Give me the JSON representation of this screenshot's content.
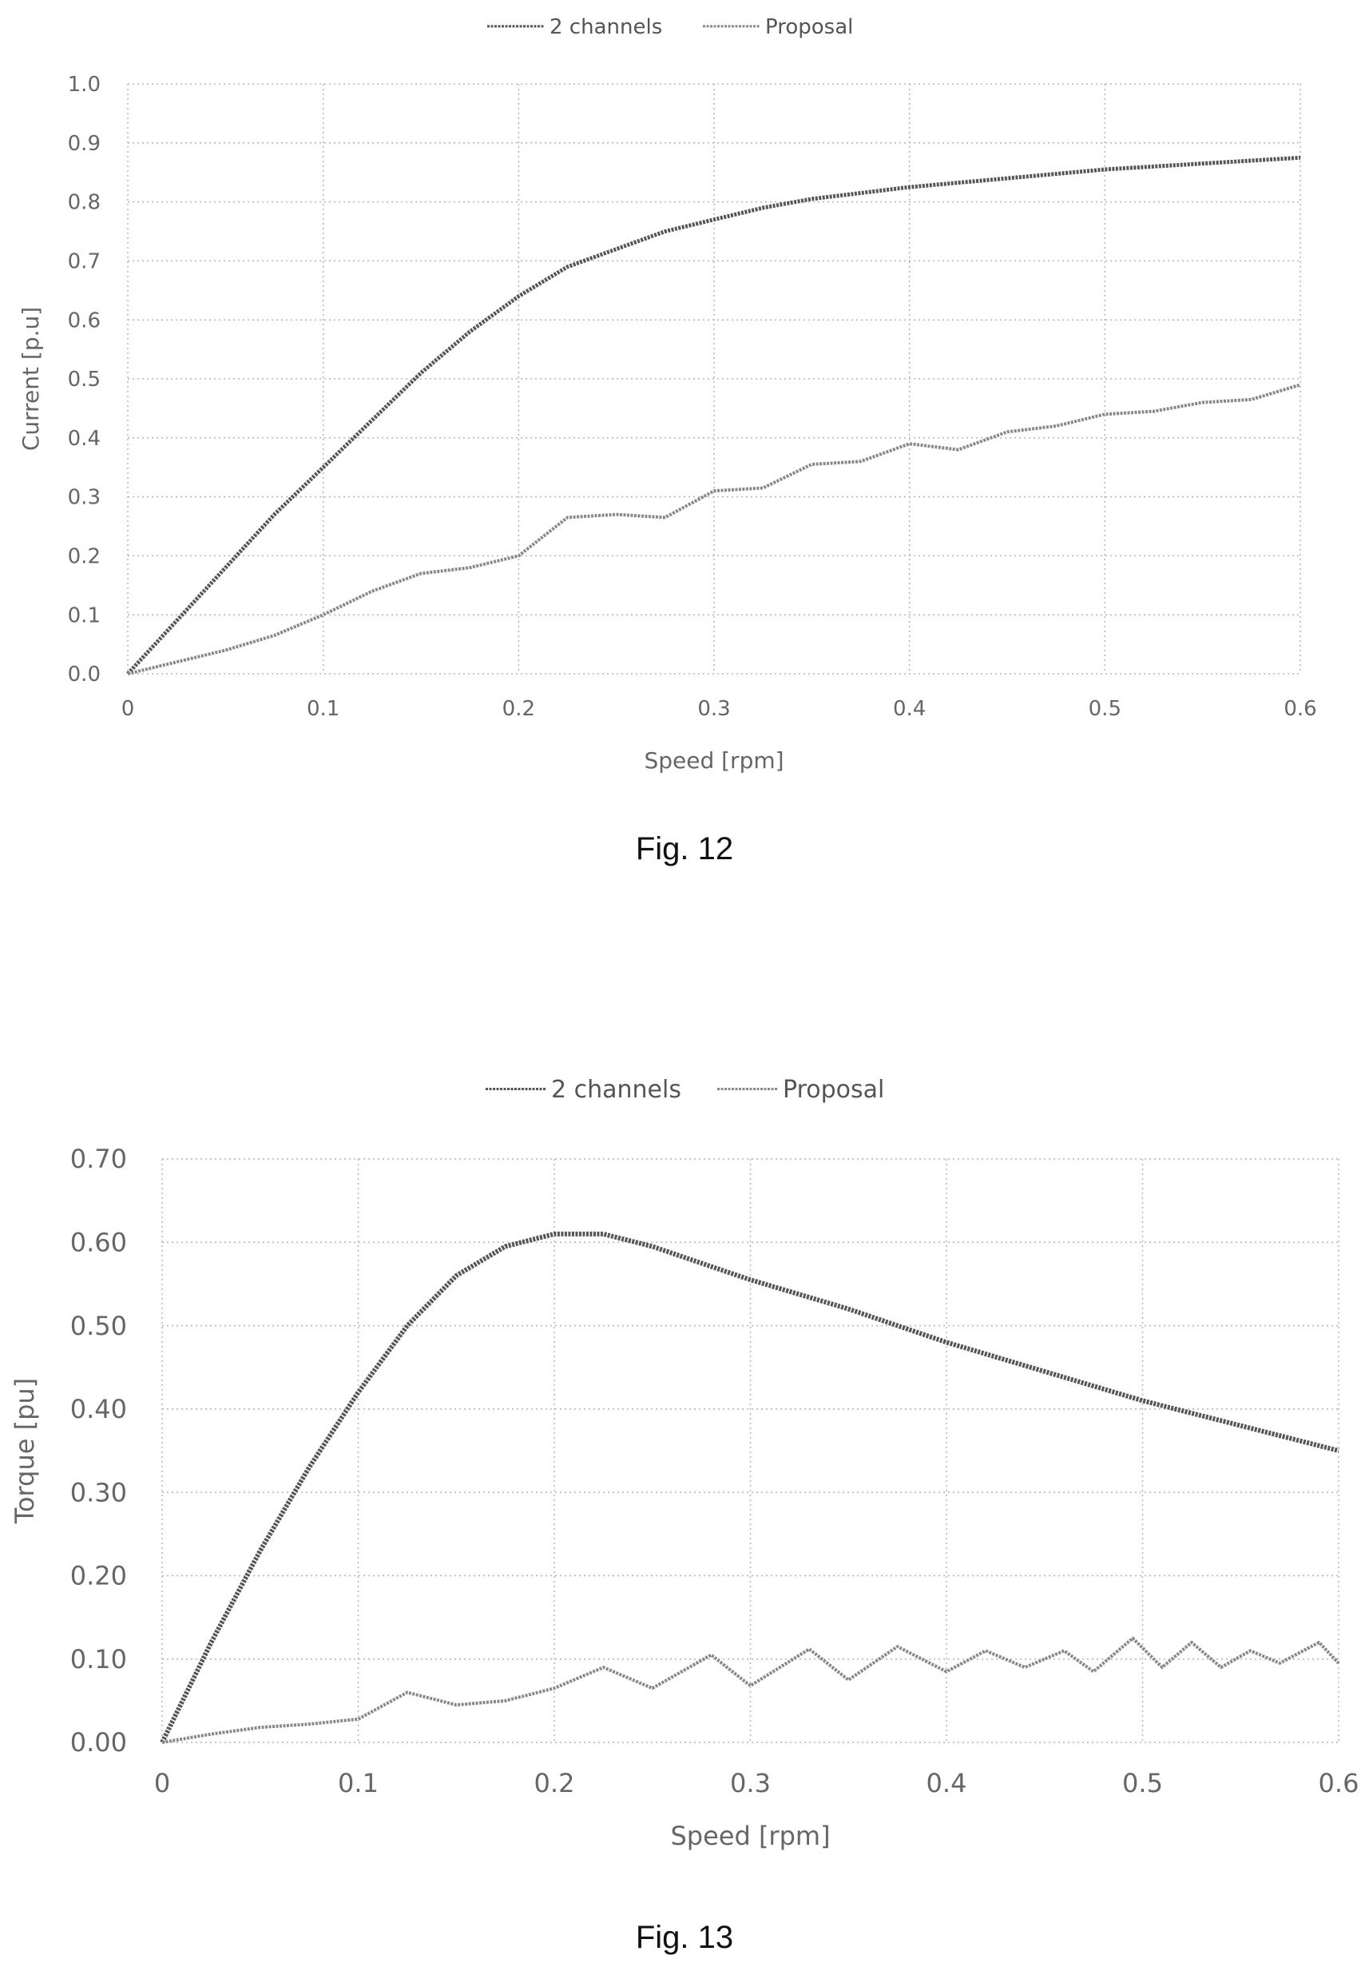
{
  "chart_data": [
    {
      "type": "line",
      "caption": "Fig.  12",
      "xlabel": "Speed [rpm]",
      "ylabel": "Current [p.u]",
      "xlim": [
        0,
        0.6
      ],
      "ylim": [
        0,
        1.0
      ],
      "x_ticks": [
        "0",
        "0.1",
        "0.2",
        "0.3",
        "0.4",
        "0.5",
        "0.6"
      ],
      "y_ticks": [
        "0.0",
        "0.1",
        "0.2",
        "0.3",
        "0.4",
        "0.5",
        "0.6",
        "0.7",
        "0.8",
        "0.9",
        "1.0"
      ],
      "grid": true,
      "legend_position": "top-center",
      "series": [
        {
          "name": "2 channels",
          "color": "#555555",
          "x": [
            0,
            0.025,
            0.05,
            0.075,
            0.1,
            0.125,
            0.15,
            0.175,
            0.2,
            0.225,
            0.25,
            0.275,
            0.3,
            0.325,
            0.35,
            0.375,
            0.4,
            0.45,
            0.5,
            0.55,
            0.6
          ],
          "y": [
            0,
            0.09,
            0.18,
            0.27,
            0.35,
            0.43,
            0.51,
            0.58,
            0.64,
            0.69,
            0.72,
            0.75,
            0.77,
            0.79,
            0.805,
            0.815,
            0.825,
            0.84,
            0.855,
            0.865,
            0.875
          ]
        },
        {
          "name": "Proposal",
          "color": "#888888",
          "x": [
            0,
            0.025,
            0.05,
            0.075,
            0.1,
            0.125,
            0.15,
            0.175,
            0.2,
            0.225,
            0.25,
            0.275,
            0.3,
            0.325,
            0.35,
            0.375,
            0.4,
            0.425,
            0.45,
            0.475,
            0.5,
            0.525,
            0.55,
            0.575,
            0.6
          ],
          "y": [
            0,
            0.02,
            0.04,
            0.065,
            0.1,
            0.14,
            0.17,
            0.18,
            0.2,
            0.265,
            0.27,
            0.265,
            0.31,
            0.315,
            0.355,
            0.36,
            0.39,
            0.38,
            0.41,
            0.42,
            0.44,
            0.445,
            0.46,
            0.465,
            0.49
          ]
        }
      ]
    },
    {
      "type": "line",
      "caption": "Fig. 13",
      "xlabel": "Speed [rpm]",
      "ylabel": "Torque [pu]",
      "xlim": [
        0,
        0.6
      ],
      "ylim": [
        0,
        0.7
      ],
      "x_ticks": [
        "0",
        "0.1",
        "0.2",
        "0.3",
        "0.4",
        "0.5",
        "0.6"
      ],
      "y_ticks": [
        "0.00",
        "0.10",
        "0.20",
        "0.30",
        "0.40",
        "0.50",
        "0.60",
        "0.70"
      ],
      "grid": true,
      "legend_position": "top-center",
      "series": [
        {
          "name": "2 channels",
          "color": "#555555",
          "x": [
            0,
            0.025,
            0.05,
            0.075,
            0.1,
            0.125,
            0.15,
            0.175,
            0.2,
            0.225,
            0.25,
            0.275,
            0.3,
            0.35,
            0.4,
            0.45,
            0.5,
            0.55,
            0.6
          ],
          "y": [
            0,
            0.12,
            0.23,
            0.33,
            0.42,
            0.5,
            0.56,
            0.595,
            0.61,
            0.61,
            0.595,
            0.575,
            0.555,
            0.52,
            0.48,
            0.445,
            0.41,
            0.38,
            0.35
          ]
        },
        {
          "name": "Proposal",
          "color": "#888888",
          "x": [
            0,
            0.025,
            0.05,
            0.075,
            0.1,
            0.125,
            0.15,
            0.175,
            0.2,
            0.225,
            0.25,
            0.28,
            0.3,
            0.33,
            0.35,
            0.375,
            0.4,
            0.42,
            0.44,
            0.46,
            0.475,
            0.495,
            0.51,
            0.525,
            0.54,
            0.555,
            0.57,
            0.59,
            0.6
          ],
          "y": [
            0,
            0.01,
            0.018,
            0.022,
            0.028,
            0.06,
            0.045,
            0.05,
            0.065,
            0.09,
            0.065,
            0.105,
            0.068,
            0.112,
            0.075,
            0.115,
            0.085,
            0.11,
            0.09,
            0.11,
            0.085,
            0.125,
            0.09,
            0.12,
            0.09,
            0.11,
            0.095,
            0.12,
            0.095
          ]
        }
      ]
    }
  ]
}
